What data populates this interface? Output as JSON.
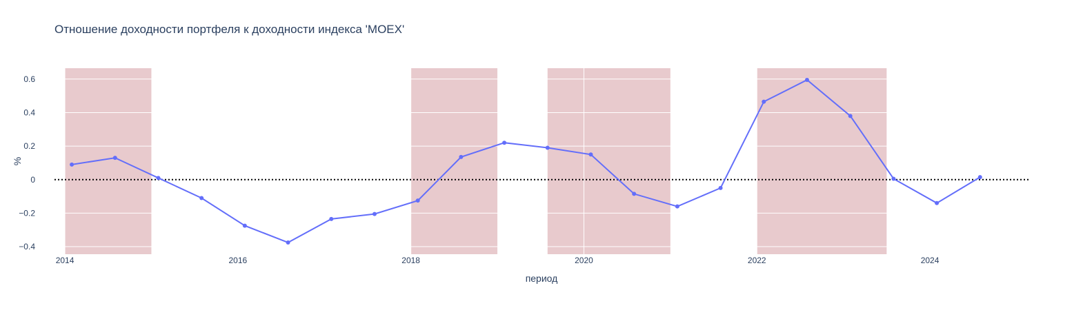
{
  "chart_data": {
    "type": "line",
    "title": "Отношение доходности портфеля к доходности индекса 'MOEX'",
    "xlabel": "период",
    "ylabel": "%",
    "xlim": [
      2013.88,
      2025.14
    ],
    "ylim": [
      -0.445,
      0.665
    ],
    "x_ticks": [
      2014,
      2016,
      2018,
      2020,
      2022,
      2024
    ],
    "x_tick_labels": [
      "2014",
      "2016",
      "2018",
      "2020",
      "2022",
      "2024"
    ],
    "y_ticks": [
      -0.4,
      -0.2,
      0,
      0.2,
      0.4,
      0.6
    ],
    "y_tick_labels": [
      "−0.4",
      "−0.2",
      "0",
      "0.2",
      "0.4",
      "0.6"
    ],
    "grid": true,
    "reference_line": {
      "y": 0,
      "style": "dotted",
      "color": "#000000"
    },
    "shaded_periods": [
      {
        "start": 2014.0,
        "end": 2015.0
      },
      {
        "start": 2018.0,
        "end": 2019.0
      },
      {
        "start": 2019.58,
        "end": 2021.0
      },
      {
        "start": 2022.0,
        "end": 2023.5
      }
    ],
    "series": [
      {
        "color": "#636efa",
        "x": [
          2014.08,
          2014.58,
          2015.08,
          2015.58,
          2016.08,
          2016.58,
          2017.08,
          2017.58,
          2018.08,
          2018.58,
          2019.08,
          2019.58,
          2020.08,
          2020.58,
          2021.08,
          2021.58,
          2022.08,
          2022.58,
          2023.08,
          2023.58,
          2024.08,
          2024.58
        ],
        "y": [
          0.09,
          0.13,
          0.01,
          -0.11,
          -0.275,
          -0.375,
          -0.235,
          -0.205,
          -0.125,
          0.135,
          0.22,
          0.19,
          0.15,
          -0.085,
          -0.16,
          -0.05,
          0.465,
          0.595,
          0.38,
          0.005,
          -0.14,
          0.015
        ]
      }
    ],
    "colors": {
      "shade": "#e8cacd",
      "grid": "#ffffff",
      "text": "#2a3f5f",
      "line": "#636efa"
    }
  }
}
